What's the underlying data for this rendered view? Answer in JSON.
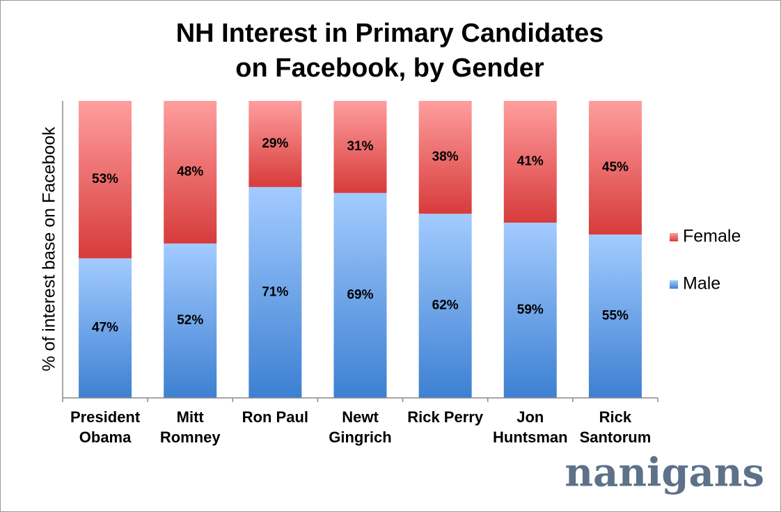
{
  "chart_data": {
    "type": "stacked_bar",
    "title": "NH Interest in Primary Candidates\non Facebook, by Gender",
    "y_label": "% of interest base on Facebook",
    "categories": [
      "President\nObama",
      "Mitt\nRomney",
      "Ron Paul",
      "Newt\nGingrich",
      "Rick Perry",
      "Jon\nHuntsman",
      "Rick\nSantorum"
    ],
    "ylim": [
      0,
      100
    ],
    "series": [
      {
        "name": "Male",
        "color": "#5b9be8",
        "values": [
          47,
          52,
          71,
          69,
          62,
          59,
          55
        ],
        "value_labels": [
          "47%",
          "52%",
          "71%",
          "69%",
          "62%",
          "59%",
          "55%"
        ]
      },
      {
        "name": "Female",
        "color": "#e25353",
        "values": [
          53,
          48,
          29,
          31,
          38,
          41,
          45
        ],
        "value_labels": [
          "53%",
          "48%",
          "29%",
          "31%",
          "38%",
          "41%",
          "45%"
        ]
      }
    ],
    "legend": "right",
    "logo": "nanigans"
  }
}
